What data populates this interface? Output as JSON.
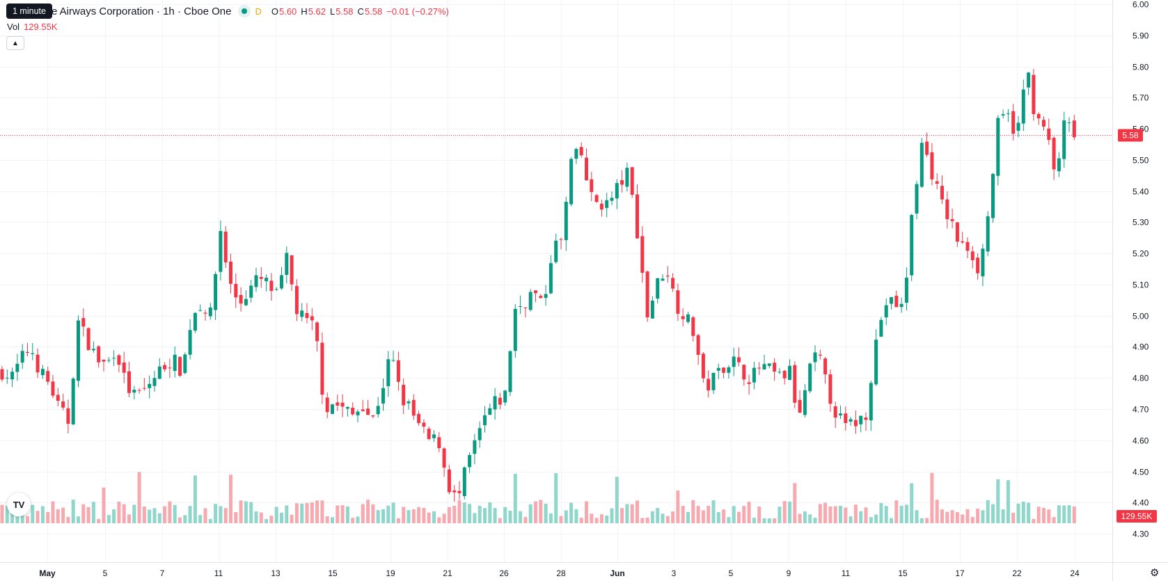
{
  "legend": {
    "symbol": "e Airways Corporation · 1h · Cboe One",
    "d_flag": "D",
    "open_label": "O",
    "open": "5.60",
    "high_label": "H",
    "high": "5.62",
    "low_label": "L",
    "low": "5.58",
    "close_label": "C",
    "close": "5.58",
    "change": "−0.01 (−0.27%)"
  },
  "tooltip": "1 minute",
  "volume": {
    "label": "Vol",
    "value": "129.55K"
  },
  "colors": {
    "up": "#089981",
    "down": "#f23645",
    "vol_up": "#8fd6cb",
    "vol_down": "#f7a9b0"
  },
  "icons": {
    "collapse": "chevron-up-icon",
    "logo": "tradingview-logo-icon",
    "settings": "gear-icon"
  },
  "logo_text": "TV",
  "settings_glyph": "⚙",
  "collapse_glyph": "▲",
  "chart_data": {
    "type": "candlestick",
    "y_axis": {
      "ticks": [
        "4.30",
        "4.40",
        "4.50",
        "4.60",
        "4.70",
        "4.80",
        "4.90",
        "5.00",
        "5.10",
        "5.20",
        "5.30",
        "5.40",
        "5.50",
        "5.60",
        "5.70",
        "5.80",
        "5.90",
        "6.00"
      ],
      "range": [
        4.26,
        6.0
      ]
    },
    "x_axis": {
      "ticks": [
        "May",
        "5",
        "7",
        "11",
        "13",
        "15",
        "19",
        "21",
        "26",
        "28",
        "Jun",
        "3",
        "5",
        "9",
        "11",
        "15",
        "17",
        "22",
        "24"
      ],
      "bold": [
        "May",
        "Jun"
      ]
    },
    "last_price": "5.58",
    "last_volume": "129.55K",
    "anchors": [
      4.82,
      4.8,
      4.86,
      4.9,
      4.82,
      4.78,
      4.7,
      4.66,
      4.98,
      4.92,
      4.86,
      4.84,
      4.9,
      4.78,
      4.74,
      4.76,
      4.8,
      4.84,
      4.86,
      4.82,
      5.0,
      5.04,
      5.0,
      5.28,
      5.1,
      5.04,
      5.08,
      5.12,
      5.1,
      5.06,
      5.18,
      5.02,
      4.98,
      4.96,
      4.7,
      4.72,
      4.7,
      4.68,
      4.72,
      4.66,
      4.76,
      4.88,
      4.74,
      4.7,
      4.64,
      4.6,
      4.6,
      4.46,
      4.4,
      4.52,
      4.6,
      4.68,
      4.72,
      4.74,
      5.02,
      5.04,
      5.08,
      5.02,
      5.22,
      5.24,
      5.5,
      5.52,
      5.38,
      5.36,
      5.36,
      5.42,
      5.46,
      5.26,
      5.0,
      5.1,
      5.16,
      5.04,
      5.0,
      4.94,
      4.76,
      4.8,
      4.84,
      4.86,
      4.82,
      4.8,
      4.84,
      4.82,
      4.8,
      4.82,
      4.66,
      4.82,
      4.88,
      4.76,
      4.68,
      4.64,
      4.66,
      4.68,
      4.9,
      5.04,
      5.04,
      5.02,
      5.36,
      5.56,
      5.46,
      5.36,
      5.3,
      5.22,
      5.22,
      5.14,
      5.34,
      5.62,
      5.64,
      5.58,
      5.8,
      5.62,
      5.6,
      5.44,
      5.62,
      5.58
    ],
    "volume_scale_max": 1.0
  }
}
